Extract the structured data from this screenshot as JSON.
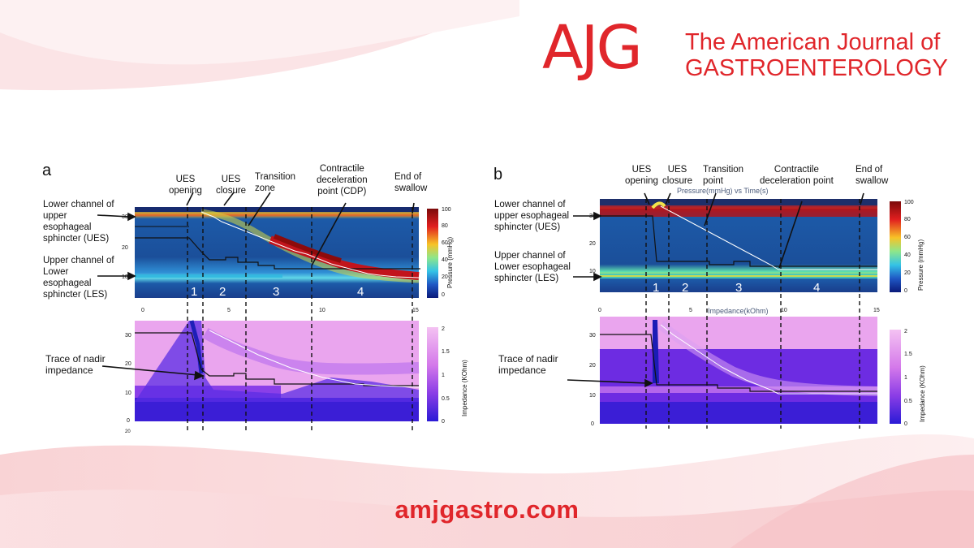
{
  "brand": {
    "logo_mark": "AJG",
    "title_line1": "The American Journal of",
    "title_line2": "GASTROENTEROLOGY",
    "color": "#e0262b",
    "website": "amjgastro.com"
  },
  "panel_a": {
    "letter": "a",
    "annotations": {
      "ues_opening": [
        "UES",
        "opening"
      ],
      "ues_closure": [
        "UES",
        "closure"
      ],
      "transition": [
        "Transition",
        "zone"
      ],
      "cdp": [
        "Contractile",
        "deceleration",
        "point (CDP)"
      ],
      "end": [
        "End of",
        "swallow"
      ],
      "lower_channel": [
        "Lower channel of",
        "upper",
        "esophageal",
        "sphincter (UES)"
      ],
      "upper_channel": [
        "Upper channel of",
        "Lower",
        "esophageal",
        "sphincter (LES)"
      ],
      "nadir": [
        "Trace of nadir",
        "impedance"
      ]
    },
    "phases": [
      "1",
      "2",
      "3",
      "4"
    ],
    "time_ticks": [
      "0",
      "5",
      "10",
      "15"
    ],
    "pressure_y_ticks": [
      "30",
      "20",
      "10"
    ],
    "impedance_y_ticks": [
      "30",
      "20",
      "10",
      "0"
    ],
    "extra_tick": "20",
    "pressure_scale": {
      "label": "Pressure (mmHg)",
      "ticks": [
        "100",
        "80",
        "60",
        "40",
        "20",
        "0"
      ]
    },
    "impedance_scale": {
      "label": "Impedance (KOhm)",
      "ticks": [
        "2",
        "1.5",
        "1",
        "0.5",
        "0"
      ]
    }
  },
  "panel_b": {
    "letter": "b",
    "annotations": {
      "ues_opening": [
        "UES",
        "opening"
      ],
      "ues_closure": [
        "UES",
        "closure"
      ],
      "transition": [
        "Transition",
        "point"
      ],
      "cdp": [
        "Contractile",
        "deceleration point"
      ],
      "end": [
        "End of",
        "swallow"
      ],
      "lower_channel": [
        "Lower channel of",
        "upper esophageal",
        "sphincter (UES)"
      ],
      "upper_channel": [
        "Upper channel of",
        "Lower esophageal",
        "sphincter (LES)"
      ],
      "nadir": [
        "Trace of nadir",
        "impedance"
      ]
    },
    "plot_title": "Pressure(mmHg) vs Time(s)",
    "impedance_title": "Impedance(kOhm)",
    "phases": [
      "1",
      "2",
      "3",
      "4"
    ],
    "time_ticks": [
      "0",
      "5",
      "10",
      "15"
    ],
    "pressure_y_ticks": [
      "30",
      "20",
      "10"
    ],
    "impedance_y_ticks": [
      "30",
      "20",
      "10",
      "0"
    ],
    "pressure_scale": {
      "label": "Pressure (mmHg)",
      "ticks": [
        "100",
        "80",
        "60",
        "40",
        "20",
        "0"
      ]
    },
    "impedance_scale": {
      "label": "Impedance (KOhm)",
      "ticks": [
        "2",
        "1.5",
        "1",
        "0.5",
        "0"
      ]
    }
  }
}
